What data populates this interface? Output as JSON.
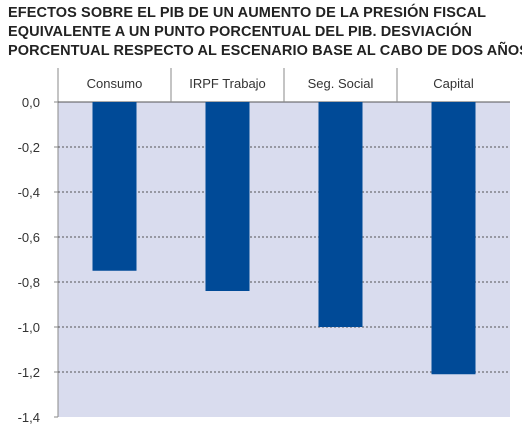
{
  "title_lines": [
    "EFECTOS SOBRE EL PIB DE UN AUMENTO DE LA PRESIÓN FISCAL",
    "EQUIVALENTE A UN PUNTO PORCENTUAL DEL PIB.  DESVIACIÓN",
    "PORCENTUAL RESPECTO AL ESCENARIO BASE AL CABO DE DOS AÑOS"
  ],
  "colors": {
    "bar": "#004a97",
    "plot_background": "#d9dcee",
    "grid": "#555555"
  },
  "chart_data": {
    "type": "bar",
    "title": "EFECTOS SOBRE EL PIB DE UN AUMENTO DE LA PRESIÓN FISCAL EQUIVALENTE A UN PUNTO PORCENTUAL DEL PIB.  DESVIACIÓN PORCENTUAL RESPECTO AL ESCENARIO BASE AL CABO DE DOS AÑOS",
    "categories": [
      "Consumo",
      "IRPF Trabajo",
      "Seg. Social",
      "Capital"
    ],
    "values": [
      -0.75,
      -0.84,
      -1.0,
      -1.21
    ],
    "ylim": [
      -1.4,
      0.0
    ],
    "yticks": [
      "0,0",
      "-0,2",
      "-0,4",
      "-0,6",
      "-0,8",
      "-1,0",
      "-1,2",
      "-1,4"
    ],
    "xlabel": "",
    "ylabel": "",
    "grid": true,
    "category_axis_position": "top"
  }
}
